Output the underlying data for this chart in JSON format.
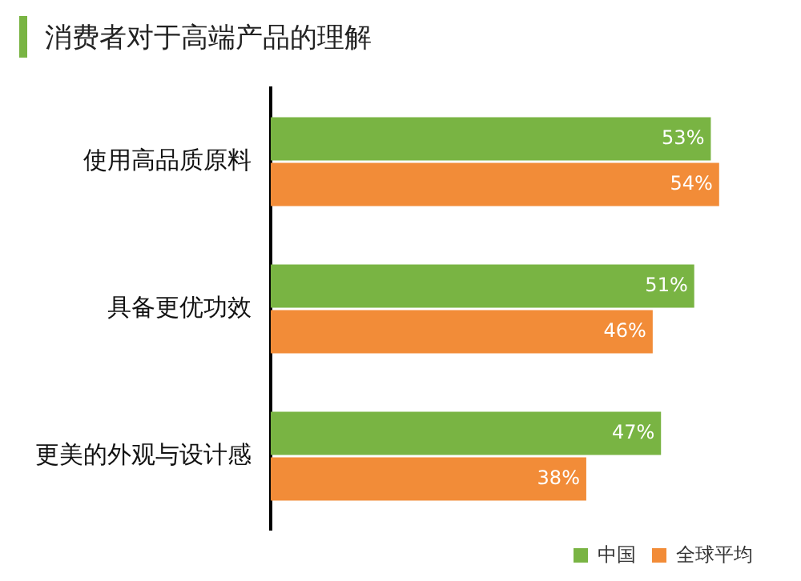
{
  "chart_data": {
    "type": "bar",
    "orientation": "horizontal",
    "title": "消费者对于高端产品的理解",
    "categories": [
      "使用高品质原料",
      "具备更优功效",
      "更美的外观与设计感"
    ],
    "series": [
      {
        "name": "中国",
        "color": "#79b443",
        "values": [
          53,
          51,
          47
        ],
        "value_labels": [
          "53%",
          "51%",
          "47%"
        ]
      },
      {
        "name": "全球平均",
        "color": "#f28c38",
        "values": [
          54,
          46,
          38
        ],
        "value_labels": [
          "54%",
          "46%",
          "38%"
        ]
      }
    ],
    "legend": "bottom right"
  }
}
